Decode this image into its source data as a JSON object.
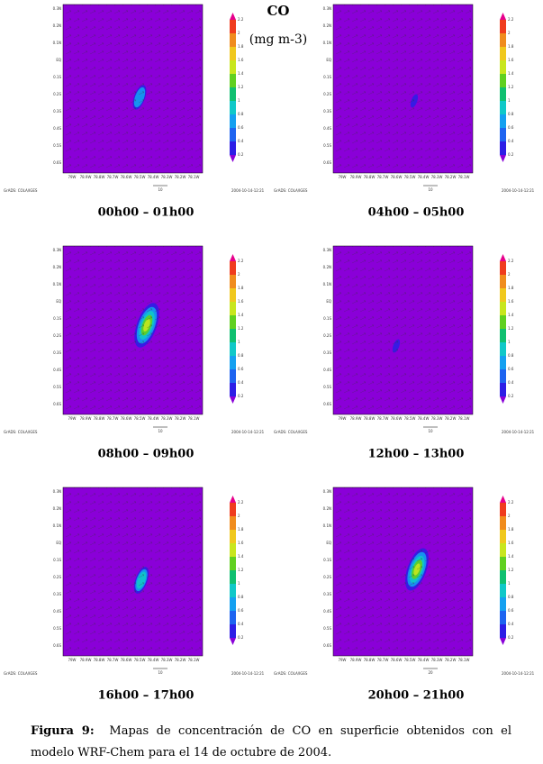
{
  "figure": {
    "legend_title": "CO",
    "legend_unit": "(mg m-3)",
    "map_axes": {
      "lat_labels": [
        "0.3N",
        "0.2N",
        "0.1N",
        "EQ",
        "0.1S",
        "0.2S",
        "0.3S",
        "0.4S",
        "0.5S",
        "0.6S"
      ],
      "lon_labels": [
        "79W",
        "78.9W",
        "78.8W",
        "78.7W",
        "78.6W",
        "78.5W",
        "78.4W",
        "78.3W",
        "78.2W",
        "78.1W"
      ],
      "colorbar_labels": [
        "0.2",
        "0.4",
        "0.6",
        "0.8",
        "1",
        "1.2",
        "1.4",
        "1.6",
        "1.8",
        "2",
        "2.2"
      ],
      "colorbar_colors": [
        "#8a00d8",
        "#2d1ee6",
        "#1e64f0",
        "#14a0f0",
        "#10c8c8",
        "#10c070",
        "#60d020",
        "#c8e61e",
        "#f0c81e",
        "#f08c1e",
        "#f03c1e",
        "#e6008c"
      ],
      "footer_left": "GrADS: COLA/IGES",
      "footer_right": "2004-10-14-12:21"
    },
    "panels": [
      {
        "label": "00h00 – 01h00",
        "vector_scale": "10"
      },
      {
        "label": "04h00 – 05h00",
        "vector_scale": "10"
      },
      {
        "label": "08h00 – 09h00",
        "vector_scale": "10"
      },
      {
        "label": "12h00 – 13h00",
        "vector_scale": "10"
      },
      {
        "label": "16h00 – 17h00",
        "vector_scale": "10"
      },
      {
        "label": "20h00 – 21h00",
        "vector_scale": "20"
      }
    ],
    "caption_label": "Figura 9:",
    "caption_text": "Mapas de concentración de CO en superficie obtenidos con el modelo WRF-Chem para el 14 de octubre de 2004."
  }
}
